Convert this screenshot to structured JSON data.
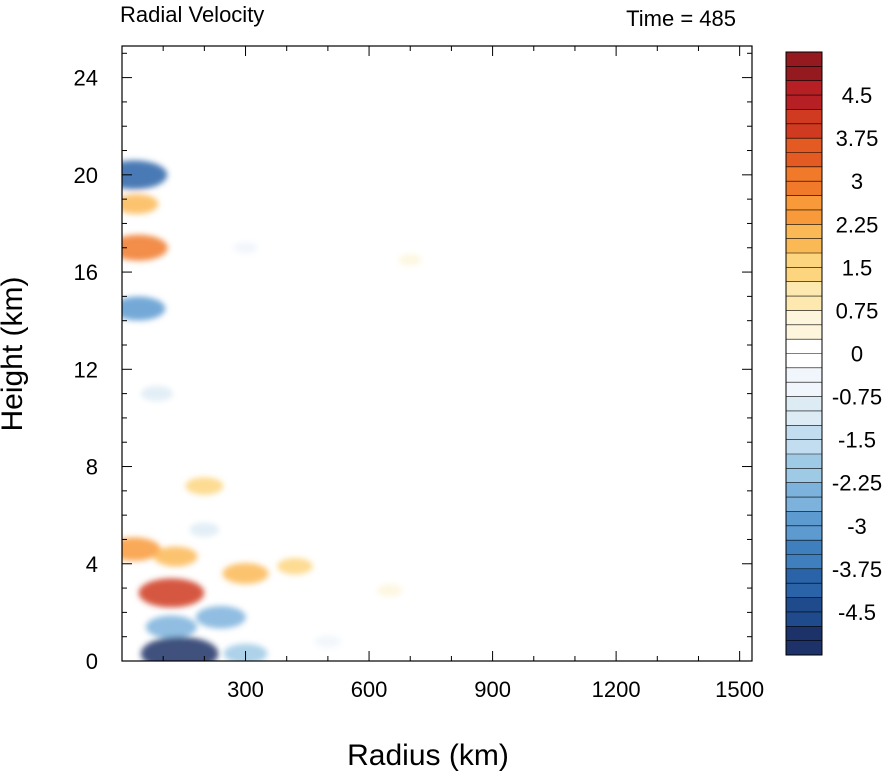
{
  "chart_data": {
    "type": "heatmap",
    "title_left": "Radial Velocity",
    "title_right": "Time = 485",
    "xlabel": "Radius (km)",
    "ylabel": "Height (km)",
    "xlim": [
      0,
      1530
    ],
    "ylim": [
      0,
      25.3
    ],
    "x_ticks": [
      300,
      600,
      900,
      1200,
      1500
    ],
    "x_ticklabels": [
      "300",
      "600",
      "900",
      "1200",
      "1500"
    ],
    "y_ticks": [
      0,
      4,
      8,
      12,
      16,
      20,
      24
    ],
    "y_ticklabels": [
      "0",
      "4",
      "8",
      "12",
      "16",
      "20",
      "24"
    ],
    "colorbar": {
      "min": -5.25,
      "max": 5.25,
      "interval": 0.25,
      "labeled_values": [
        -4.5,
        -3.75,
        -3,
        -2.25,
        -1.5,
        -0.75,
        0,
        0.75,
        1.5,
        2.25,
        3,
        3.75,
        4.5
      ],
      "labels": [
        "-4.5",
        "-3.75",
        "-3",
        "-2.25",
        "-1.5",
        "-0.75",
        "0",
        "0.75",
        "1.5",
        "2.25",
        "3",
        "3.75",
        "4.5"
      ],
      "colors_low_to_high": [
        "#1c3268",
        "#1f4a8c",
        "#2a63a8",
        "#3f7fbe",
        "#5c9ad0",
        "#7cb2dc",
        "#9fcae6",
        "#c2ddef",
        "#ddebf5",
        "#f0f6fb",
        "#ffffff",
        "#fdf6dc",
        "#fde9b0",
        "#fdd57f",
        "#fbb956",
        "#f89a3a",
        "#f07a2a",
        "#e35a22",
        "#cf3a20",
        "#b62025",
        "#951a1f"
      ]
    },
    "features": [
      {
        "x": 30,
        "y": 4.6,
        "value": 2.7
      },
      {
        "x": 130,
        "y": 4.3,
        "value": 2.0
      },
      {
        "x": 300,
        "y": 3.6,
        "value": 2.2
      },
      {
        "x": 420,
        "y": 3.9,
        "value": 1.3
      },
      {
        "x": 650,
        "y": 2.9,
        "value": 0.5
      },
      {
        "x": 200,
        "y": 7.2,
        "value": 1.5
      },
      {
        "x": 40,
        "y": 17.0,
        "value": 3.2
      },
      {
        "x": 35,
        "y": 18.8,
        "value": 2.0
      },
      {
        "x": 30,
        "y": 20.0,
        "value": -3.8
      },
      {
        "x": 40,
        "y": 14.5,
        "value": -2.8
      },
      {
        "x": 85,
        "y": 11.0,
        "value": -1.0
      },
      {
        "x": 120,
        "y": 2.8,
        "value": 3.8
      },
      {
        "x": 120,
        "y": 1.4,
        "value": -2.6
      },
      {
        "x": 140,
        "y": 0.3,
        "value": -4.8
      },
      {
        "x": 300,
        "y": 0.3,
        "value": -2.0
      },
      {
        "x": 240,
        "y": 1.8,
        "value": -2.5
      },
      {
        "x": 500,
        "y": 0.8,
        "value": -0.6
      },
      {
        "x": 200,
        "y": 5.4,
        "value": -0.8
      },
      {
        "x": 300,
        "y": 17.0,
        "value": -0.4
      },
      {
        "x": 700,
        "y": 16.5,
        "value": 0.3
      }
    ]
  }
}
